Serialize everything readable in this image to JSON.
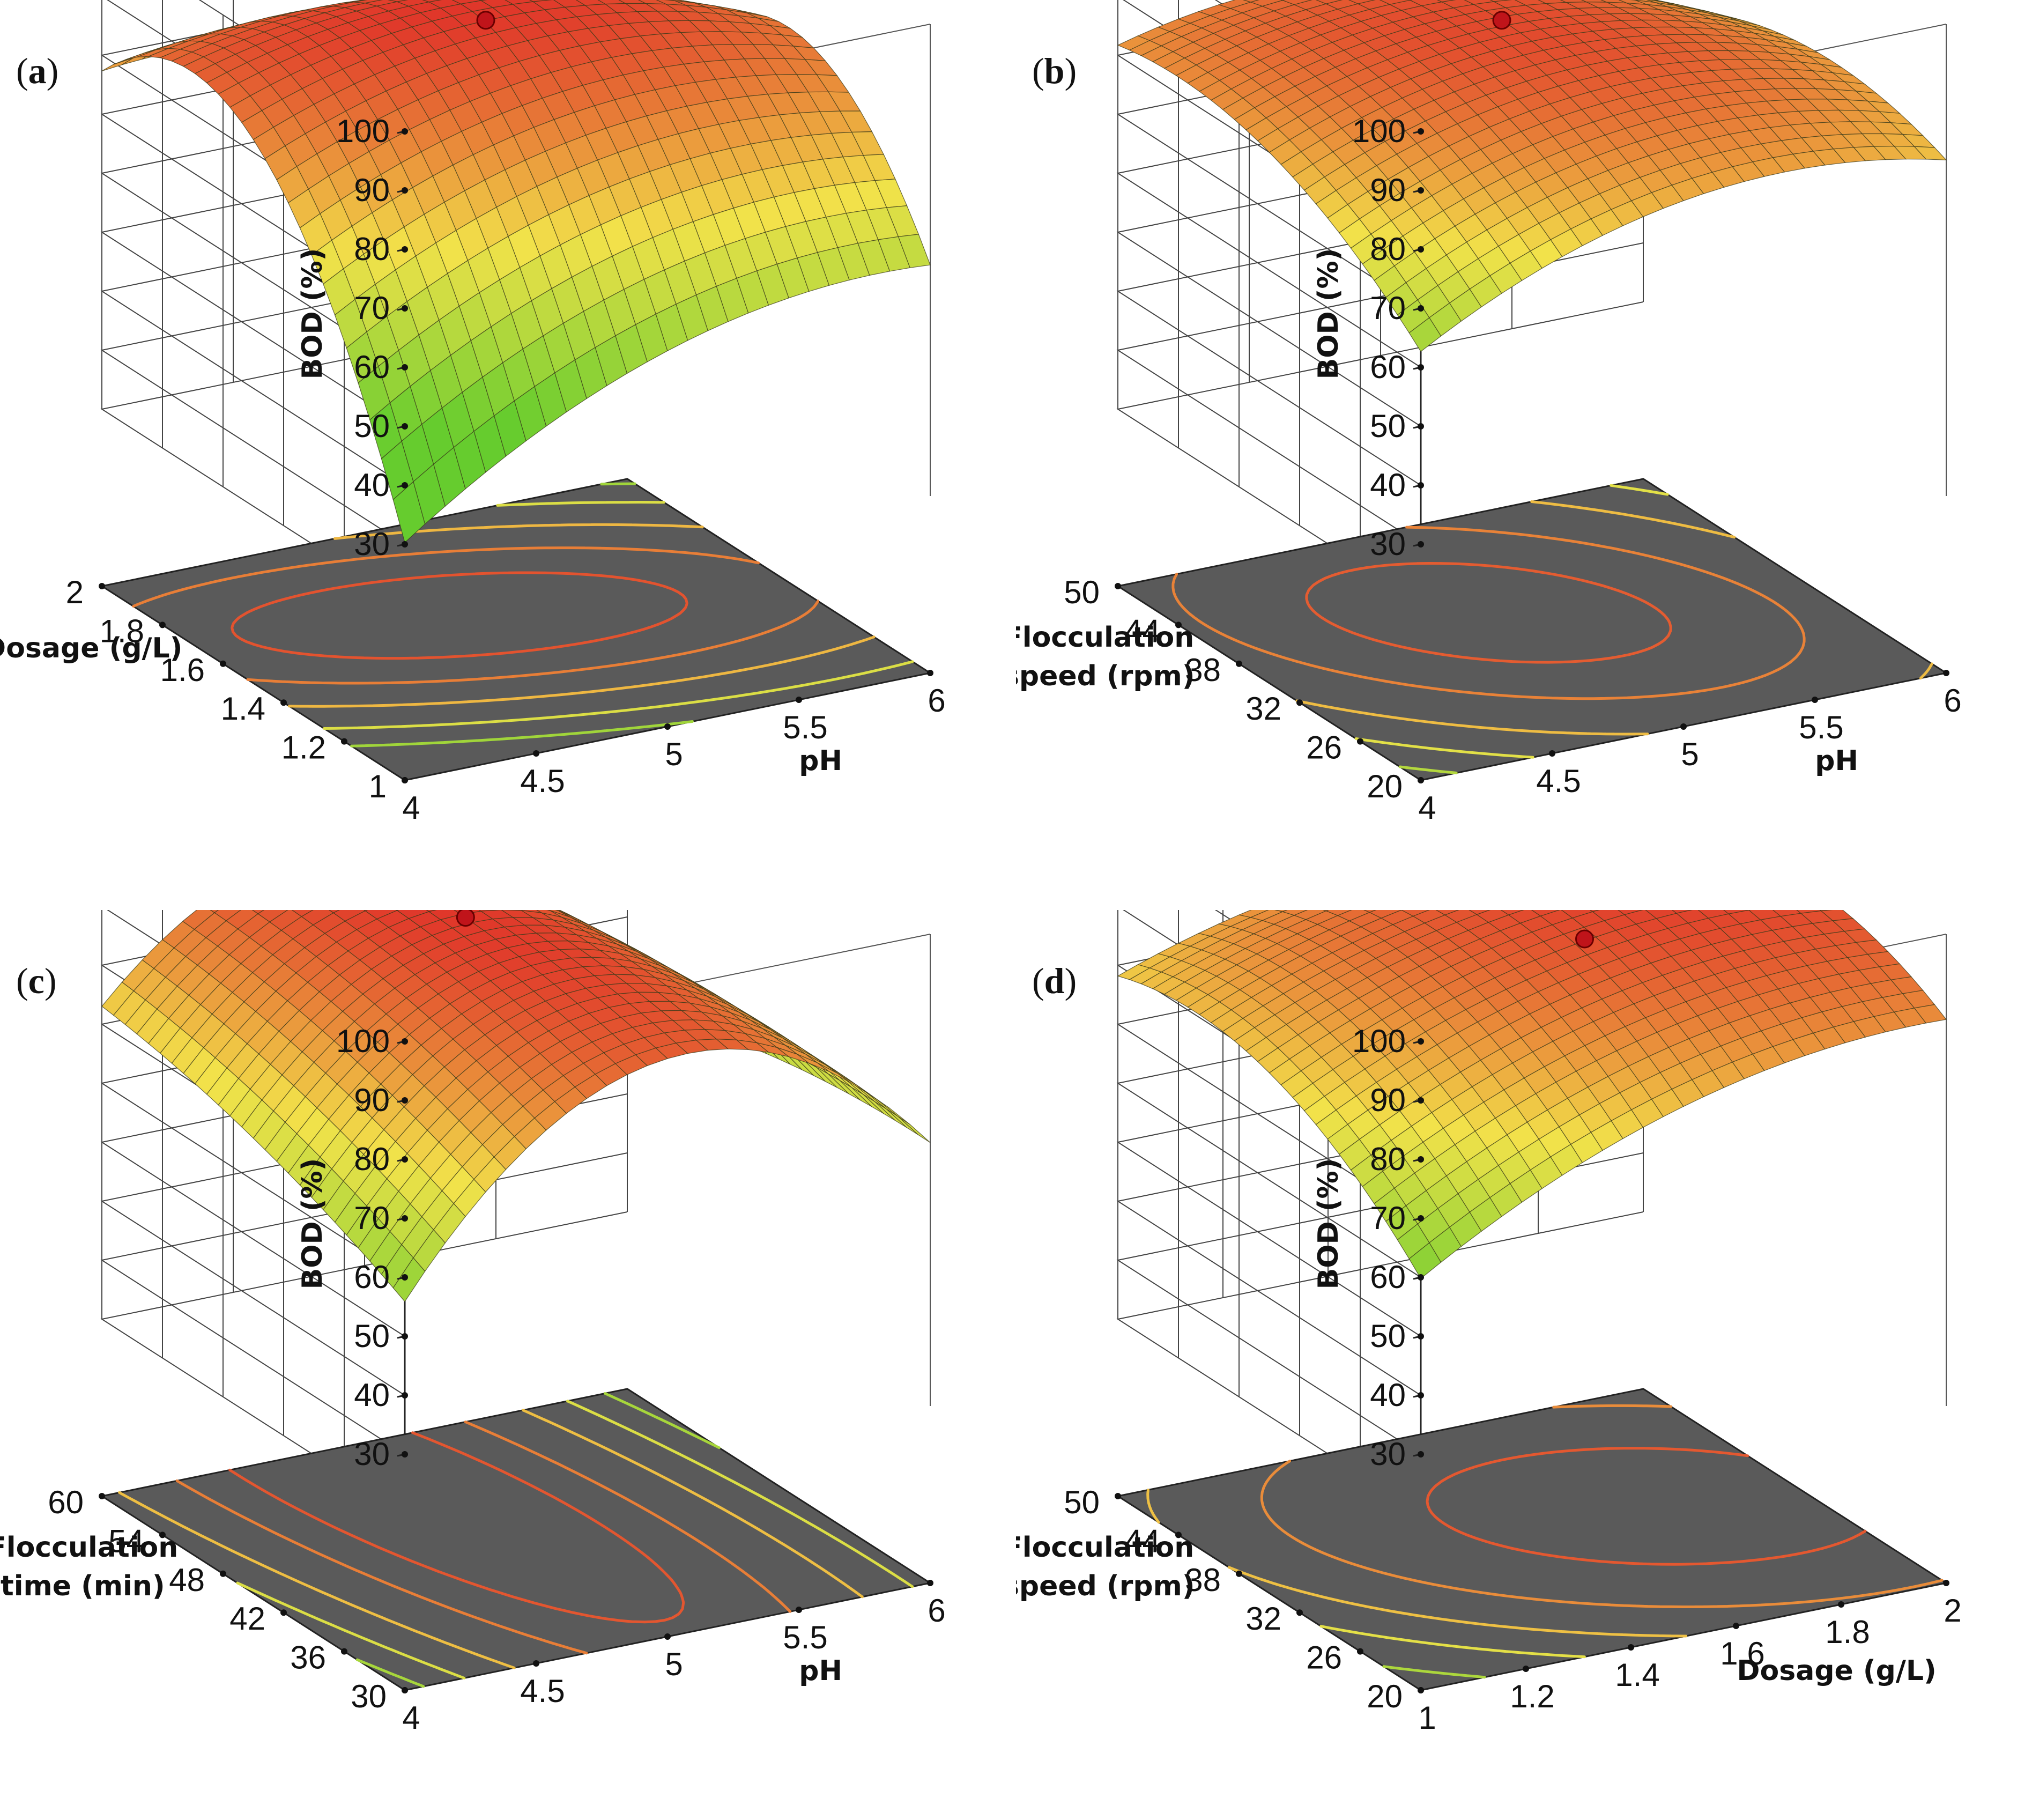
{
  "figure": {
    "description_panels": [
      "a",
      "b",
      "c",
      "d"
    ],
    "colors": {
      "surface_low": "#66cc2e",
      "surface_mid": "#f2e24a",
      "surface_high": "#e0362a",
      "floor": "#5a5a5a",
      "optimum_point": "#c0141a"
    }
  },
  "chart_data": [
    {
      "panel": "(a)",
      "panel_letter": "a",
      "type": "surface3d",
      "z_label": "BOD  (%)",
      "z_ticks": [
        "30",
        "40",
        "50",
        "60",
        "70",
        "80",
        "90",
        "100"
      ],
      "z_range": [
        30,
        100
      ],
      "x_label": "pH",
      "x_ticks": [
        "4",
        "4.5",
        "5",
        "5.5",
        "6"
      ],
      "x_range": [
        4,
        6
      ],
      "y_label": [
        "Dosage (g/L)"
      ],
      "y_ticks": [
        "1",
        "1.2",
        "1.4",
        "1.6",
        "1.8",
        "2"
      ],
      "y_range": [
        1,
        2
      ],
      "corners_z": {
        "x_min_y_min": 32,
        "x_max_y_min": 55,
        "x_min_y_max": 85,
        "x_max_y_max": 50
      },
      "peak": {
        "x": 4.9,
        "y": 1.6,
        "z": 93
      },
      "optimum_point": {
        "x": 5.0,
        "y": 1.6,
        "z": 90
      },
      "contour_levels": [
        55,
        65,
        75,
        83,
        89
      ]
    },
    {
      "panel": "(b)",
      "panel_letter": "b",
      "type": "surface3d",
      "z_label": "BOD  (%)",
      "z_ticks": [
        "30",
        "40",
        "50",
        "60",
        "70",
        "80",
        "90",
        "100"
      ],
      "z_range": [
        30,
        100
      ],
      "x_label": "pH",
      "x_ticks": [
        "4",
        "4.5",
        "5",
        "5.5",
        "6"
      ],
      "x_range": [
        4,
        6
      ],
      "y_label": [
        "Flocculation",
        "speed (rpm)"
      ],
      "y_ticks": [
        "20",
        "26",
        "32",
        "38",
        "44",
        "50"
      ],
      "y_range": [
        20,
        50
      ],
      "corners_z": {
        "x_min_y_min": 62,
        "x_max_y_min": 78,
        "x_min_y_max": 80,
        "x_max_y_max": 70
      },
      "peak": {
        "x": 4.95,
        "y": 38,
        "z": 90
      },
      "optimum_point": {
        "x": 5.0,
        "y": 38,
        "z": 90
      },
      "contour_levels": [
        66,
        72,
        78,
        84,
        88
      ]
    },
    {
      "panel": "(c)",
      "panel_letter": "c",
      "type": "surface3d",
      "z_label": "BOD  (%)",
      "z_ticks": [
        "30",
        "40",
        "50",
        "60",
        "70",
        "80",
        "90",
        "100"
      ],
      "z_range": [
        30,
        100
      ],
      "x_label": "pH",
      "x_ticks": [
        "4",
        "4.5",
        "5",
        "5.5",
        "6"
      ],
      "x_range": [
        4,
        6
      ],
      "y_label": [
        "Flocculation",
        "time (min)"
      ],
      "y_ticks": [
        "30",
        "36",
        "42",
        "48",
        "54",
        "60"
      ],
      "y_range": [
        30,
        60
      ],
      "corners_z": {
        "x_min_y_min": 58,
        "x_max_y_min": 62,
        "x_min_y_max": 82,
        "x_max_y_max": 50
      },
      "peak": {
        "x": 4.9,
        "y": 52,
        "z": 93
      },
      "optimum_point": {
        "x": 5.0,
        "y": 50,
        "z": 90
      },
      "contour_levels": [
        60,
        68,
        76,
        84,
        89
      ]
    },
    {
      "panel": "(d)",
      "panel_letter": "d",
      "type": "surface3d",
      "z_label": "BOD  (%)",
      "z_ticks": [
        "30",
        "40",
        "50",
        "60",
        "70",
        "80",
        "90",
        "100"
      ],
      "z_range": [
        30,
        100
      ],
      "x_label": "Dosage (g/L)",
      "x_ticks": [
        "1",
        "1.2",
        "1.4",
        "1.6",
        "1.8",
        "2"
      ],
      "x_range": [
        1,
        2
      ],
      "y_label": [
        "Flocculation",
        "speed (rpm)"
      ],
      "y_ticks": [
        "20",
        "26",
        "32",
        "38",
        "44",
        "50"
      ],
      "y_range": [
        20,
        50
      ],
      "corners_z": {
        "x_min_y_min": 60,
        "x_max_y_min": 86,
        "x_min_y_max": 78,
        "x_max_y_max": 82
      },
      "peak": {
        "x": 1.75,
        "y": 36,
        "z": 95
      },
      "optimum_point": {
        "x": 1.6,
        "y": 35,
        "z": 90
      },
      "contour_levels": [
        66,
        74,
        80,
        86,
        92
      ]
    }
  ]
}
